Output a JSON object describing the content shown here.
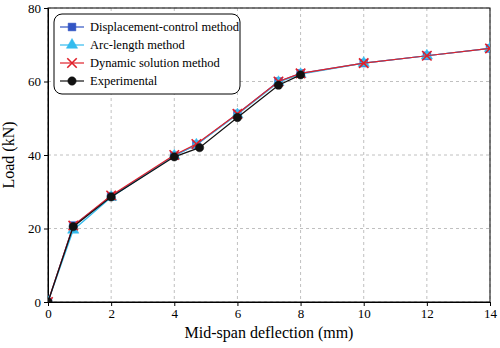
{
  "chart_data": {
    "type": "line",
    "x_label": "Mid-span deflection (mm)",
    "y_label": "Load (kN)",
    "xlim": [
      0,
      14
    ],
    "xticks": [
      0,
      2,
      4,
      6,
      8,
      10,
      12,
      14
    ],
    "ylim": [
      0,
      80
    ],
    "yticks": [
      0,
      20,
      40,
      60,
      80
    ],
    "grid": true,
    "legend": "upper left",
    "series": [
      {
        "name": "Displacement-control method",
        "color": "#3355c4",
        "marker": "square",
        "line_style": "solid",
        "x": [
          0,
          0.8,
          2,
          4,
          4.7,
          6,
          7.3,
          8,
          10,
          12,
          14
        ],
        "values": [
          0,
          20.8,
          28.8,
          39.8,
          42.8,
          51.2,
          60,
          62.2,
          65,
          67,
          69
        ]
      },
      {
        "name": "Arc-length method",
        "color": "#33bbee",
        "marker": "triangle",
        "line_style": "solid",
        "x": [
          0,
          0.8,
          2,
          4,
          4.7,
          6,
          7.3,
          8,
          10,
          12,
          14
        ],
        "values": [
          0,
          19.6,
          28.5,
          39.8,
          42.8,
          51,
          59.8,
          62,
          65,
          67,
          69
        ]
      },
      {
        "name": "Dynamic solution method",
        "color": "#e0202a",
        "marker": "x",
        "line_style": "solid",
        "x": [
          0,
          0.8,
          2,
          4,
          4.7,
          6,
          7.3,
          8,
          10,
          12,
          14
        ],
        "values": [
          0,
          20.8,
          29,
          40,
          43,
          51.2,
          60,
          62.2,
          65,
          67,
          69
        ]
      },
      {
        "name": "Experimental",
        "color": "#111111",
        "marker": "circle",
        "line_style": "solid",
        "x": [
          0,
          0.8,
          2,
          4,
          4.8,
          6,
          7.3,
          8
        ],
        "values": [
          0,
          20.5,
          28.6,
          39.5,
          42,
          50.2,
          59,
          61.8
        ]
      }
    ]
  }
}
